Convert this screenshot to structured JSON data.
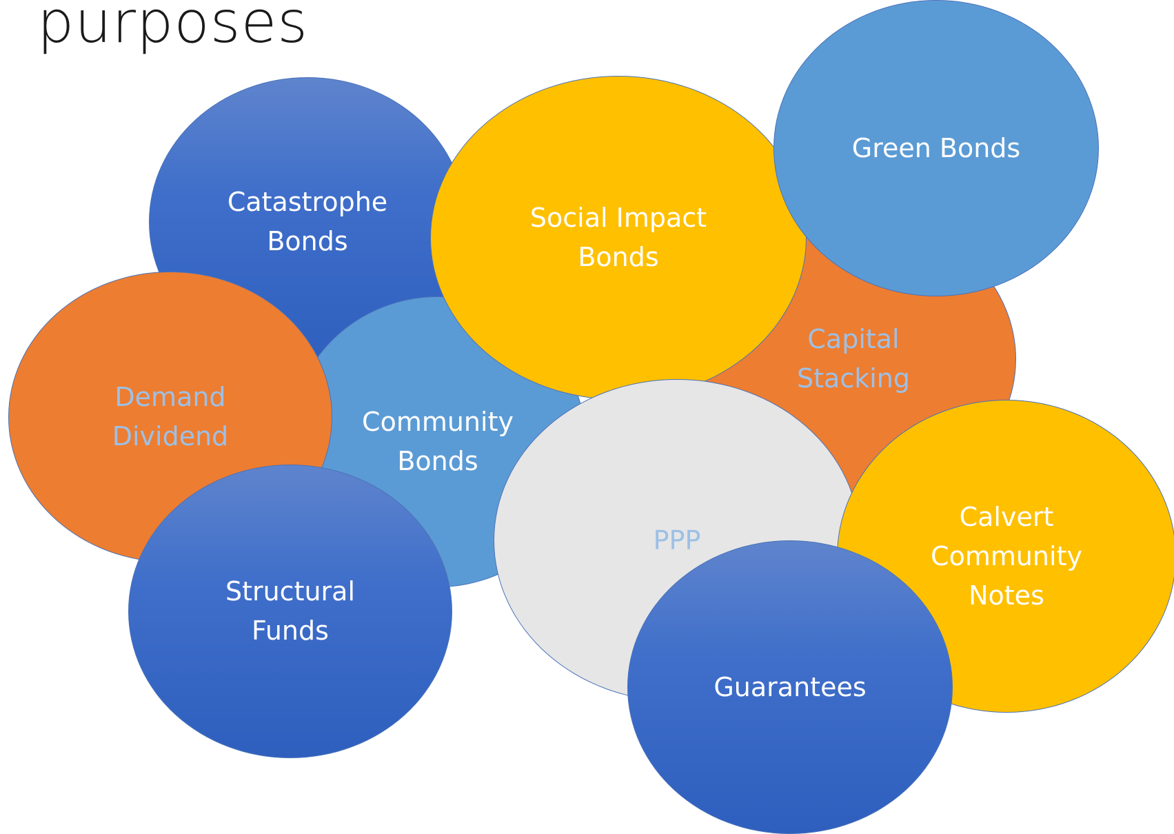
{
  "title": "purposes",
  "bubbles": {
    "catastrophe_bonds": {
      "label": "Catastrophe\nBonds"
    },
    "community_bonds": {
      "label": "Community\nBonds"
    },
    "social_impact_bonds": {
      "label": "Social Impact\nBonds"
    },
    "capital_stacking": {
      "label": "Capital\nStacking"
    },
    "green_bonds": {
      "label": "Green Bonds"
    },
    "demand_dividend": {
      "label": "Demand\nDividend"
    },
    "ppp": {
      "label": "PPP"
    },
    "calvert_community_notes": {
      "label": "Calvert\nCommunity\nNotes"
    },
    "structural_funds": {
      "label": "Structural\nFunds"
    },
    "guarantees": {
      "label": "Guarantees"
    }
  },
  "colors": {
    "dark_blue": "#3f6fca",
    "light_blue": "#5b9bd5",
    "orange": "#ed7d31",
    "gold": "#ffc000",
    "gray": "#e6e6e6",
    "muted_text": "#9dc0e6",
    "text": "#ffffff"
  }
}
